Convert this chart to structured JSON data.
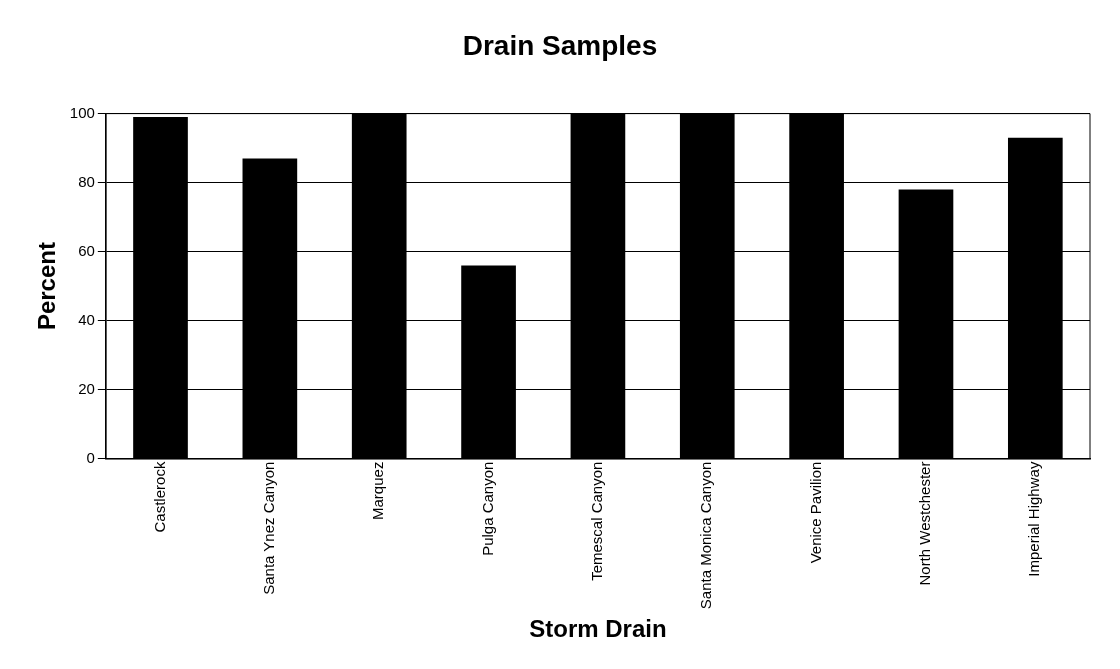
{
  "chart_data": {
    "type": "bar",
    "title": "Drain Samples",
    "xlabel": "Storm Drain",
    "ylabel": "Percent",
    "categories": [
      "Castlerock",
      "Santa Ynez Canyon",
      "Marquez",
      "Pulga Canyon",
      "Temescal Canyon",
      "Santa Monica Canyon",
      "Venice Pavilion",
      "North Westchester",
      "Imperial Highway"
    ],
    "values": [
      99,
      87,
      100,
      56,
      100,
      100,
      100,
      78,
      93
    ],
    "color": "#000000",
    "ylim": [
      0,
      100
    ],
    "yticks": [
      0,
      20,
      40,
      60,
      80,
      100
    ],
    "grid": "y",
    "legend": false
  }
}
